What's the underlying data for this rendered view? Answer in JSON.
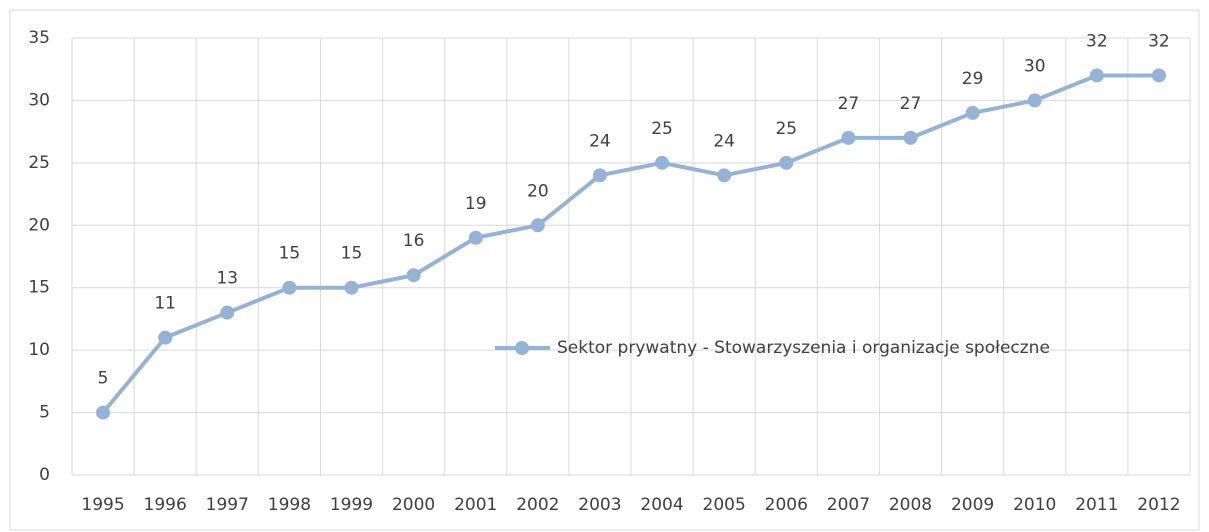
{
  "chart_data": {
    "type": "line",
    "categories": [
      "1995",
      "1996",
      "1997",
      "1998",
      "1999",
      "2000",
      "2001",
      "2002",
      "2003",
      "2004",
      "2005",
      "2006",
      "2007",
      "2008",
      "2009",
      "2010",
      "2011",
      "2012"
    ],
    "series": [
      {
        "name": "Sektor prywatny - Stowarzyszenia i organizacje społeczne",
        "color": "#95b3d7",
        "values": [
          5,
          11,
          13,
          15,
          15,
          16,
          19,
          20,
          24,
          25,
          24,
          25,
          27,
          27,
          29,
          30,
          32,
          32
        ]
      }
    ],
    "ylim": [
      0,
      35
    ],
    "yticks": [
      0,
      5,
      10,
      15,
      20,
      25,
      30,
      35
    ],
    "grid": true,
    "legend": "right",
    "data_labels": true
  }
}
